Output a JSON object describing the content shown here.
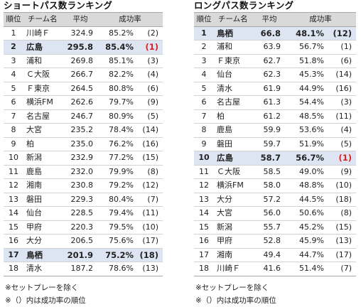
{
  "headers": {
    "rank": "順位",
    "team": "チーム名",
    "avg": "平均",
    "rate": "成功率"
  },
  "notes": [
    "※セットプレーを除く",
    "※（）内は成功率の順位"
  ],
  "left": {
    "title": "ショートパス数ランキング",
    "rows": [
      {
        "rank": "1",
        "team": "川崎Ｆ",
        "avg": "324.9",
        "pct": "85.2%",
        "prank": "(2)"
      },
      {
        "rank": "2",
        "team": "広島",
        "avg": "295.8",
        "pct": "85.4%",
        "prank": "(1)"
      },
      {
        "rank": "3",
        "team": "浦和",
        "avg": "269.8",
        "pct": "85.1%",
        "prank": "(3)"
      },
      {
        "rank": "4",
        "team": "Ｃ大阪",
        "avg": "266.7",
        "pct": "82.2%",
        "prank": "(4)"
      },
      {
        "rank": "5",
        "team": "Ｆ東京",
        "avg": "264.5",
        "pct": "80.8%",
        "prank": "(6)"
      },
      {
        "rank": "6",
        "team": "横浜FM",
        "avg": "262.6",
        "pct": "79.7%",
        "prank": "(9)"
      },
      {
        "rank": "7",
        "team": "名古屋",
        "avg": "246.7",
        "pct": "80.9%",
        "prank": "(5)"
      },
      {
        "rank": "8",
        "team": "大宮",
        "avg": "235.2",
        "pct": "78.4%",
        "prank": "(14)"
      },
      {
        "rank": "9",
        "team": "柏",
        "avg": "235.0",
        "pct": "76.2%",
        "prank": "(16)"
      },
      {
        "rank": "10",
        "team": "新潟",
        "avg": "232.9",
        "pct": "77.2%",
        "prank": "(15)"
      },
      {
        "rank": "11",
        "team": "鹿島",
        "avg": "232.0",
        "pct": "79.9%",
        "prank": "(8)"
      },
      {
        "rank": "12",
        "team": "湘南",
        "avg": "230.8",
        "pct": "79.2%",
        "prank": "(12)"
      },
      {
        "rank": "13",
        "team": "磐田",
        "avg": "229.3",
        "pct": "80.4%",
        "prank": "(7)"
      },
      {
        "rank": "14",
        "team": "仙台",
        "avg": "228.5",
        "pct": "79.4%",
        "prank": "(11)"
      },
      {
        "rank": "15",
        "team": "甲府",
        "avg": "220.3",
        "pct": "79.5%",
        "prank": "(10)"
      },
      {
        "rank": "16",
        "team": "大分",
        "avg": "206.5",
        "pct": "75.6%",
        "prank": "(17)"
      },
      {
        "rank": "17",
        "team": "鳥栖",
        "avg": "201.9",
        "pct": "75.2%",
        "prank": "(18)"
      },
      {
        "rank": "18",
        "team": "清水",
        "avg": "187.2",
        "pct": "78.6%",
        "prank": "(13)"
      }
    ]
  },
  "right": {
    "title": "ロングパス数ランキング",
    "rows": [
      {
        "rank": "1",
        "team": "鳥栖",
        "avg": "66.8",
        "pct": "48.1%",
        "prank": "(12)"
      },
      {
        "rank": "2",
        "team": "浦和",
        "avg": "63.9",
        "pct": "56.7%",
        "prank": "(1)"
      },
      {
        "rank": "3",
        "team": "Ｆ東京",
        "avg": "62.7",
        "pct": "51.8%",
        "prank": "(6)"
      },
      {
        "rank": "4",
        "team": "仙台",
        "avg": "62.3",
        "pct": "45.3%",
        "prank": "(14)"
      },
      {
        "rank": "5",
        "team": "清水",
        "avg": "61.9",
        "pct": "44.9%",
        "prank": "(16)"
      },
      {
        "rank": "6",
        "team": "名古屋",
        "avg": "61.3",
        "pct": "54.4%",
        "prank": "(3)"
      },
      {
        "rank": "7",
        "team": "柏",
        "avg": "61.2",
        "pct": "48.5%",
        "prank": "(11)"
      },
      {
        "rank": "8",
        "team": "鹿島",
        "avg": "59.9",
        "pct": "53.6%",
        "prank": "(4)"
      },
      {
        "rank": "9",
        "team": "磐田",
        "avg": "59.7",
        "pct": "51.9%",
        "prank": "(5)"
      },
      {
        "rank": "10",
        "team": "広島",
        "avg": "58.7",
        "pct": "56.7%",
        "prank": "(1)"
      },
      {
        "rank": "11",
        "team": "Ｃ大阪",
        "avg": "58.5",
        "pct": "49.0%",
        "prank": "(9)"
      },
      {
        "rank": "12",
        "team": "横浜FM",
        "avg": "58.0",
        "pct": "48.8%",
        "prank": "(10)"
      },
      {
        "rank": "13",
        "team": "大分",
        "avg": "57.2",
        "pct": "44.5%",
        "prank": "(18)"
      },
      {
        "rank": "14",
        "team": "大宮",
        "avg": "56.0",
        "pct": "50.6%",
        "prank": "(8)"
      },
      {
        "rank": "15",
        "team": "新潟",
        "avg": "55.7",
        "pct": "45.2%",
        "prank": "(15)"
      },
      {
        "rank": "16",
        "team": "甲府",
        "avg": "52.8",
        "pct": "45.9%",
        "prank": "(13)"
      },
      {
        "rank": "17",
        "team": "湘南",
        "avg": "49.4",
        "pct": "44.7%",
        "prank": "(17)"
      },
      {
        "rank": "18",
        "team": "川崎Ｆ",
        "avg": "41.6",
        "pct": "51.4%",
        "prank": "(7)"
      }
    ]
  }
}
